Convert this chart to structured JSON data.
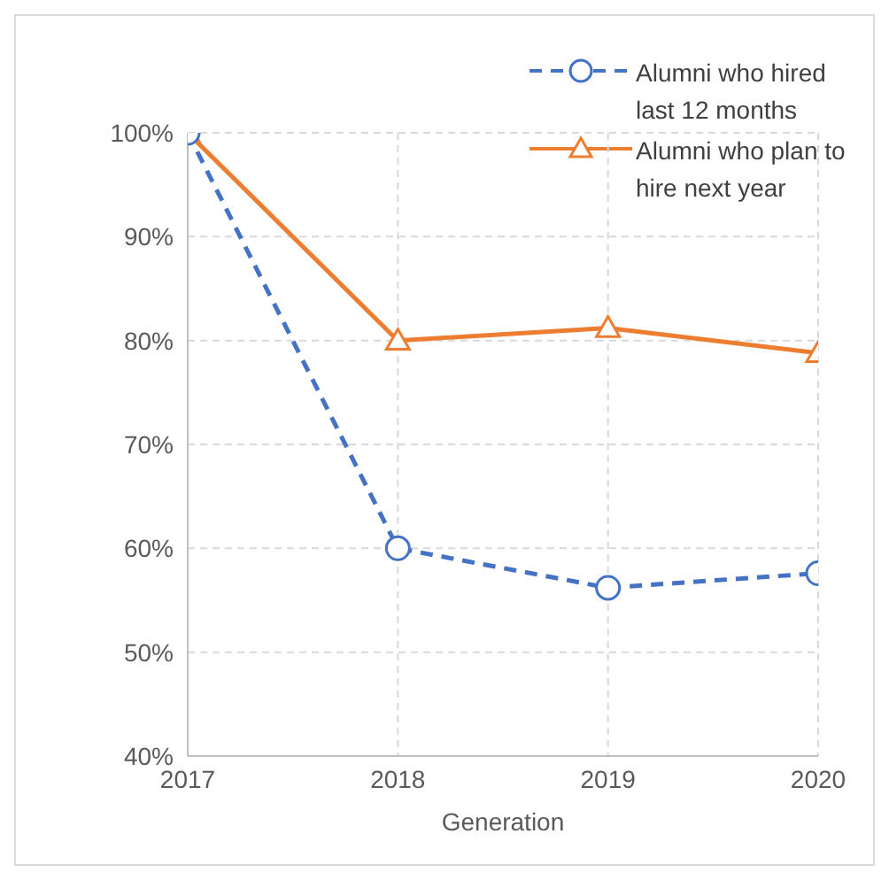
{
  "chart_data": {
    "type": "line",
    "xlabel": "Generation",
    "x": [
      2017,
      2018,
      2019,
      2020
    ],
    "series": [
      {
        "name": "Alumni who hired last 12 months",
        "color": "#4472c4",
        "values": [
          100,
          60,
          56.2,
          57.6
        ],
        "marker": "circle",
        "line_style": "dashed"
      },
      {
        "name": "Alumni who plan to hire next year",
        "color": "#ed7d31",
        "values": [
          100,
          80,
          81.2,
          78.8
        ],
        "marker": "triangle",
        "line_style": "solid"
      }
    ],
    "xlim": [
      2017,
      2020
    ],
    "xticks": [
      2017,
      2018,
      2019,
      2020
    ],
    "ylim": [
      40,
      100
    ],
    "yticks": [
      {
        "value": 40,
        "label": "40%"
      },
      {
        "value": 50,
        "label": "50%"
      },
      {
        "value": 60,
        "label": "60%"
      },
      {
        "value": 70,
        "label": "70%"
      },
      {
        "value": 80,
        "label": "80%"
      },
      {
        "value": 90,
        "label": "90%"
      },
      {
        "value": 100,
        "label": "100%"
      }
    ],
    "grid": true,
    "legend": "top right"
  }
}
